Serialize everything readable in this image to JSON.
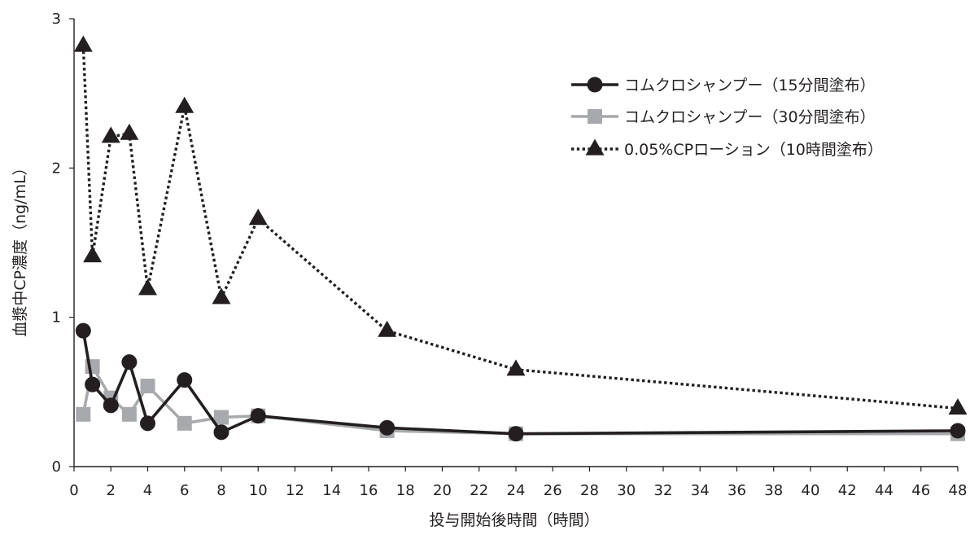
{
  "chart_data": {
    "type": "line",
    "title": "",
    "xlabel": "投与開始後時間（時間）",
    "ylabel": "血漿中CP濃度（ng/mL）",
    "xlim": [
      0,
      48
    ],
    "ylim": [
      0,
      3
    ],
    "x_ticks": [
      "0",
      "2",
      "4",
      "6",
      "8",
      "10",
      "12",
      "14",
      "16",
      "18",
      "20",
      "22",
      "24",
      "26",
      "28",
      "30",
      "32",
      "34",
      "36",
      "38",
      "40",
      "42",
      "44",
      "46",
      "48"
    ],
    "y_ticks": [
      "0",
      "1",
      "2",
      "3"
    ],
    "grid": false,
    "legend_position": "top-right",
    "series": [
      {
        "name": "コムクロシャンプー（15分間塗布）",
        "color": "#231f20",
        "line_style": "solid",
        "marker": "circle",
        "x": [
          0.5,
          1,
          2,
          3,
          4,
          6,
          8,
          10,
          17,
          24,
          48
        ],
        "y": [
          0.91,
          0.55,
          0.41,
          0.7,
          0.29,
          0.58,
          0.23,
          0.34,
          0.26,
          0.22,
          0.24
        ]
      },
      {
        "name": "コムクロシャンプー（30分間塗布）",
        "color": "#a7a9ac",
        "line_style": "solid",
        "marker": "square",
        "x": [
          0.5,
          1,
          2,
          3,
          4,
          6,
          8,
          10,
          17,
          24,
          48
        ],
        "y": [
          0.35,
          0.67,
          0.46,
          0.35,
          0.54,
          0.29,
          0.33,
          0.34,
          0.24,
          0.22,
          0.22
        ]
      },
      {
        "name": "0.05%CPローション（10時間塗布）",
        "color": "#231f20",
        "line_style": "dotted",
        "marker": "triangle",
        "x": [
          0.5,
          1,
          2,
          3,
          4,
          6,
          8,
          10,
          17,
          24,
          48
        ],
        "y": [
          2.82,
          1.41,
          2.21,
          2.23,
          1.19,
          2.41,
          1.13,
          1.66,
          0.91,
          0.65,
          0.39
        ]
      }
    ]
  }
}
